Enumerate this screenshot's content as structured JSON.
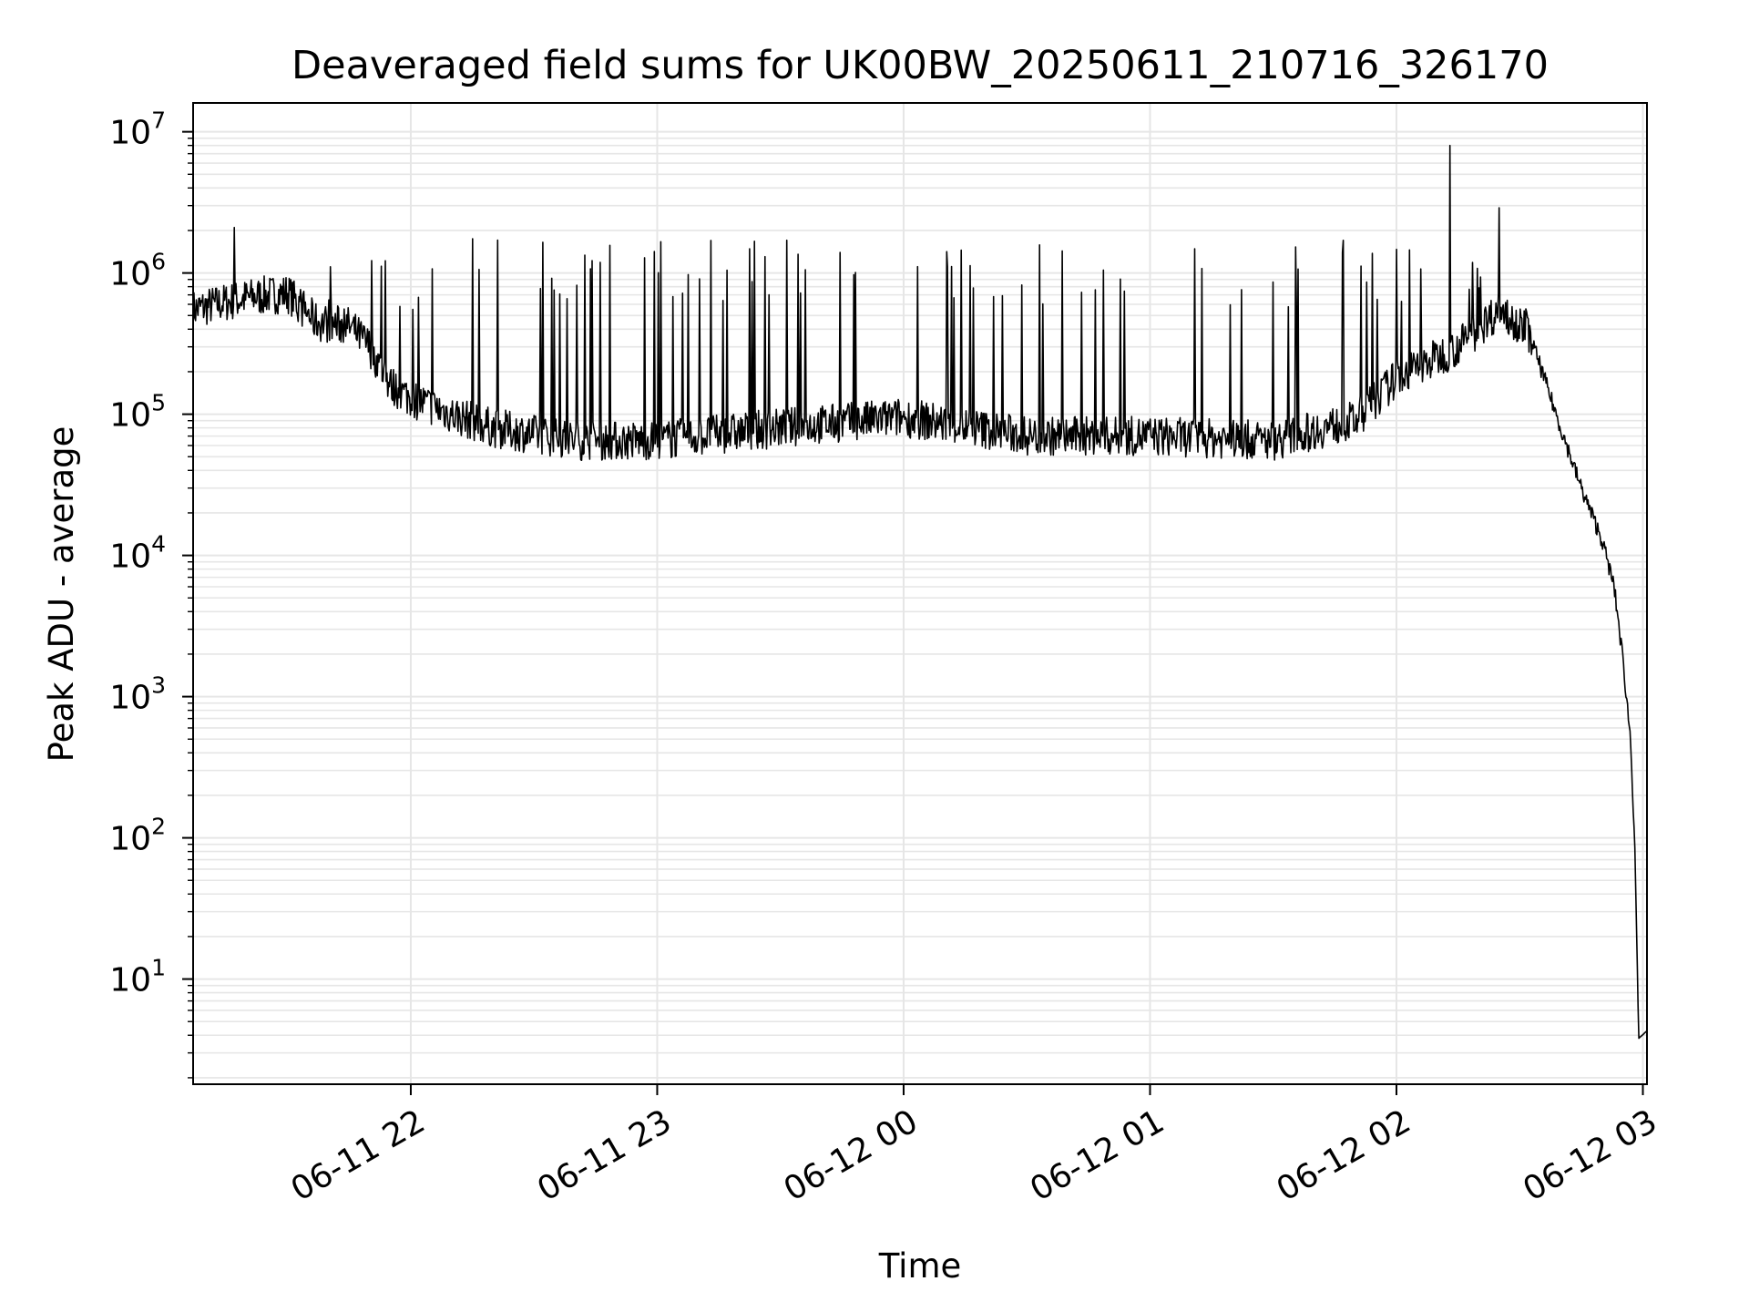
{
  "chart_data": {
    "type": "line",
    "title": "Deaveraged field sums for UK00BW_20250611_210716_326170",
    "xlabel": "Time",
    "ylabel": "Peak ADU - average",
    "yscale": "log",
    "ylim": [
      1.8,
      16000000
    ],
    "xlim": [
      "2025-06-11 21:07",
      "2025-06-12 03:01"
    ],
    "grid": "major and minor",
    "line_color": "#000000",
    "grid_color": "#e6e6e6",
    "x_ticks": [
      {
        "value": "2025-06-11 22:00",
        "label": "06-11 22"
      },
      {
        "value": "2025-06-11 23:00",
        "label": "06-11 23"
      },
      {
        "value": "2025-06-12 00:00",
        "label": "06-12 00"
      },
      {
        "value": "2025-06-12 01:00",
        "label": "06-12 01"
      },
      {
        "value": "2025-06-12 02:00",
        "label": "06-12 02"
      },
      {
        "value": "2025-06-12 03:00",
        "label": "06-12 03"
      }
    ],
    "y_ticks": [
      {
        "value": 10,
        "base": "10",
        "exp": "1"
      },
      {
        "value": 100,
        "base": "10",
        "exp": "2"
      },
      {
        "value": 1000,
        "base": "10",
        "exp": "3"
      },
      {
        "value": 10000,
        "base": "10",
        "exp": "4"
      },
      {
        "value": 100000,
        "base": "10",
        "exp": "5"
      },
      {
        "value": 1000000,
        "base": "10",
        "exp": "6"
      },
      {
        "value": 10000000,
        "base": "10",
        "exp": "7"
      }
    ],
    "series": [
      {
        "values_approx": [
          [
            "2025-06-11 21:07",
            550000
          ],
          [
            "2025-06-11 21:15",
            620000
          ],
          [
            "2025-06-11 21:22",
            680000
          ],
          [
            "2025-06-11 21:30",
            720000
          ],
          [
            "2025-06-11 21:37",
            450000
          ],
          [
            "2025-06-11 21:45",
            420000
          ],
          [
            "2025-06-11 21:50",
            300000
          ],
          [
            "2025-06-11 21:55",
            160000
          ],
          [
            "2025-06-11 22:00",
            130000
          ],
          [
            "2025-06-11 22:10",
            100000
          ],
          [
            "2025-06-11 22:20",
            80000
          ],
          [
            "2025-06-11 22:40",
            65000
          ],
          [
            "2025-06-11 23:00",
            65000
          ],
          [
            "2025-06-11 23:30",
            80000
          ],
          [
            "2025-06-12 00:00",
            95000
          ],
          [
            "2025-06-12 00:30",
            70000
          ],
          [
            "2025-06-12 01:00",
            70000
          ],
          [
            "2025-06-12 01:30",
            65000
          ],
          [
            "2025-06-12 01:50",
            90000
          ],
          [
            "2025-06-12 02:00",
            180000
          ],
          [
            "2025-06-12 02:15",
            300000
          ],
          [
            "2025-06-12 02:25",
            550000
          ],
          [
            "2025-06-12 02:32",
            400000
          ],
          [
            "2025-06-12 02:40",
            80000
          ],
          [
            "2025-06-12 02:45",
            30000
          ],
          [
            "2025-06-12 02:50",
            13000
          ],
          [
            "2025-06-12 02:53",
            6000
          ],
          [
            "2025-06-12 02:55",
            2000
          ],
          [
            "2025-06-12 02:57",
            500
          ],
          [
            "2025-06-12 02:58",
            100
          ],
          [
            "2025-06-12 02:59",
            3.8
          ],
          [
            "2025-06-12 03:01",
            4.3
          ]
        ],
        "notable_spikes": [
          [
            "2025-06-11 21:17",
            2100000
          ],
          [
            "2025-06-11 22:15",
            1750000
          ],
          [
            "2025-06-11 23:13",
            1700000
          ],
          [
            "2025-06-12 02:13",
            8000000
          ],
          [
            "2025-06-12 02:25",
            2900000
          ]
        ],
        "spike_ceiling_typical": 1100000
      }
    ]
  }
}
